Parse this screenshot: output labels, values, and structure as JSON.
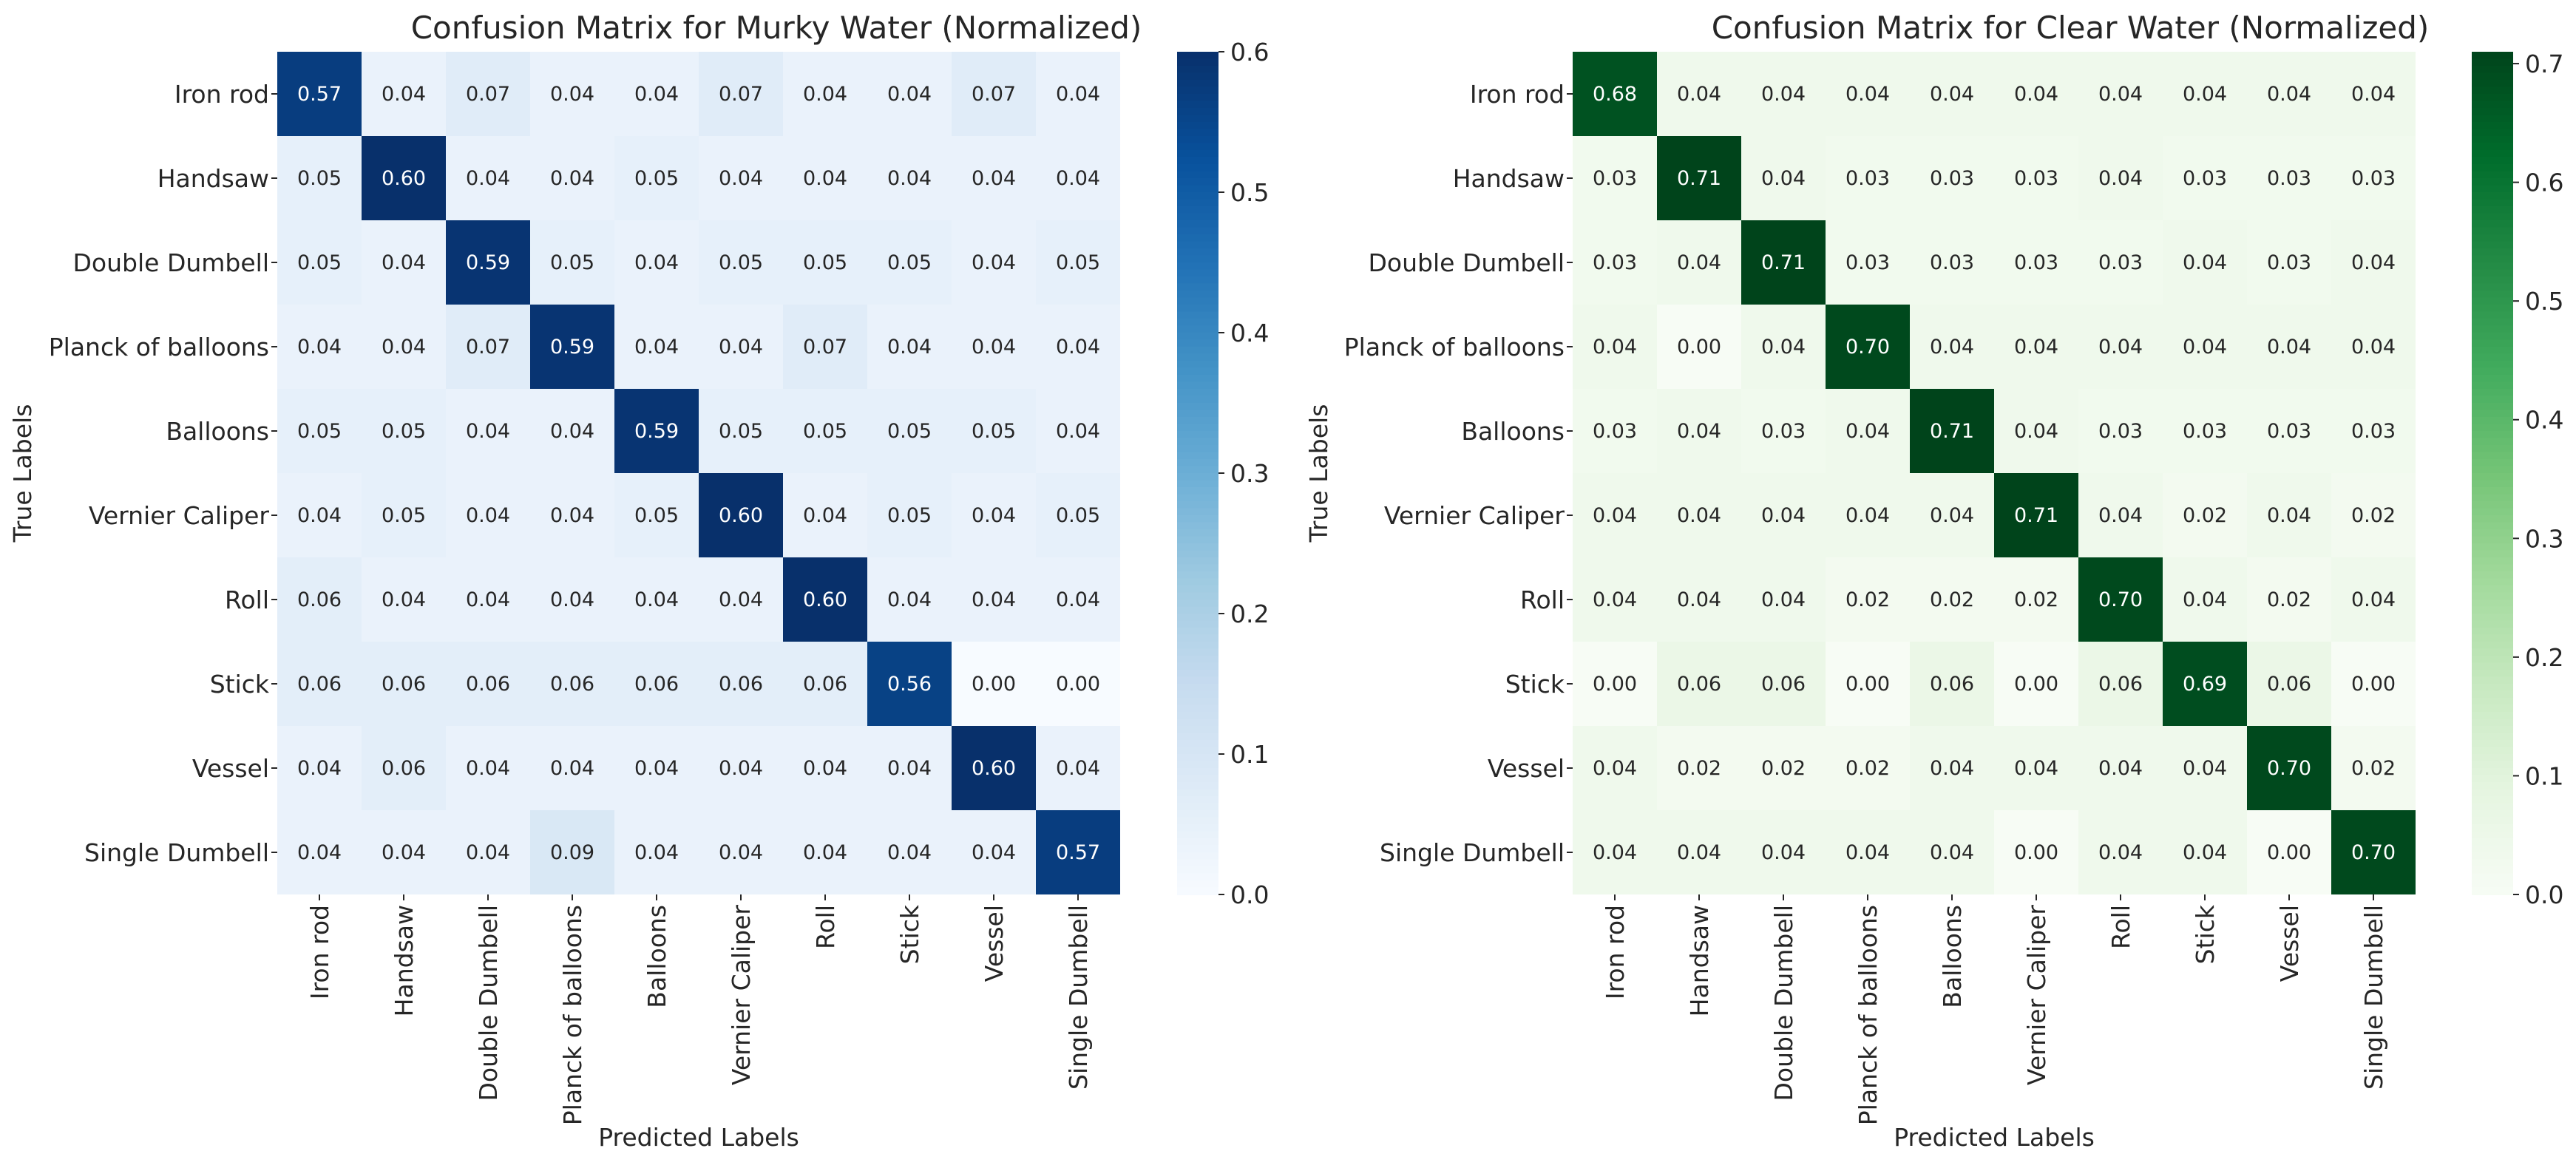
{
  "chart_data": [
    {
      "type": "heatmap",
      "title": "Confusion Matrix for Murky Water (Normalized)",
      "xlabel": "Predicted Labels",
      "ylabel": "True Labels",
      "colormap": "Blues",
      "colorbar": {
        "range": [
          0.0,
          0.6
        ],
        "ticks": [
          "0.0",
          "0.1",
          "0.2",
          "0.3",
          "0.4",
          "0.5",
          "0.6"
        ]
      },
      "categories": [
        "Iron rod",
        "Handsaw",
        "Double Dumbell",
        "Planck of balloons",
        "Balloons",
        "Vernier Caliper",
        "Roll",
        "Stick",
        "Vessel",
        "Single Dumbell"
      ],
      "values": [
        [
          0.57,
          0.04,
          0.07,
          0.04,
          0.04,
          0.07,
          0.04,
          0.04,
          0.07,
          0.04
        ],
        [
          0.05,
          0.6,
          0.04,
          0.04,
          0.05,
          0.04,
          0.04,
          0.04,
          0.04,
          0.04
        ],
        [
          0.05,
          0.04,
          0.59,
          0.05,
          0.04,
          0.05,
          0.05,
          0.05,
          0.04,
          0.05
        ],
        [
          0.04,
          0.04,
          0.07,
          0.59,
          0.04,
          0.04,
          0.07,
          0.04,
          0.04,
          0.04
        ],
        [
          0.05,
          0.05,
          0.04,
          0.04,
          0.59,
          0.05,
          0.05,
          0.05,
          0.05,
          0.04
        ],
        [
          0.04,
          0.05,
          0.04,
          0.04,
          0.05,
          0.6,
          0.04,
          0.05,
          0.04,
          0.05
        ],
        [
          0.06,
          0.04,
          0.04,
          0.04,
          0.04,
          0.04,
          0.6,
          0.04,
          0.04,
          0.04
        ],
        [
          0.06,
          0.06,
          0.06,
          0.06,
          0.06,
          0.06,
          0.06,
          0.56,
          0.0,
          0.0
        ],
        [
          0.04,
          0.06,
          0.04,
          0.04,
          0.04,
          0.04,
          0.04,
          0.04,
          0.6,
          0.04
        ],
        [
          0.04,
          0.04,
          0.04,
          0.09,
          0.04,
          0.04,
          0.04,
          0.04,
          0.04,
          0.57
        ]
      ]
    },
    {
      "type": "heatmap",
      "title": "Confusion Matrix for Clear Water (Normalized)",
      "xlabel": "Predicted Labels",
      "ylabel": "True Labels",
      "colormap": "Greens",
      "colorbar": {
        "range": [
          0.0,
          0.71
        ],
        "ticks": [
          "0.0",
          "0.1",
          "0.2",
          "0.3",
          "0.4",
          "0.5",
          "0.6",
          "0.7"
        ]
      },
      "categories": [
        "Iron rod",
        "Handsaw",
        "Double Dumbell",
        "Planck of balloons",
        "Balloons",
        "Vernier Caliper",
        "Roll",
        "Stick",
        "Vessel",
        "Single Dumbell"
      ],
      "values": [
        [
          0.68,
          0.04,
          0.04,
          0.04,
          0.04,
          0.04,
          0.04,
          0.04,
          0.04,
          0.04
        ],
        [
          0.03,
          0.71,
          0.04,
          0.03,
          0.03,
          0.03,
          0.04,
          0.03,
          0.03,
          0.03
        ],
        [
          0.03,
          0.04,
          0.71,
          0.03,
          0.03,
          0.03,
          0.03,
          0.04,
          0.03,
          0.04
        ],
        [
          0.04,
          0.0,
          0.04,
          0.7,
          0.04,
          0.04,
          0.04,
          0.04,
          0.04,
          0.04
        ],
        [
          0.03,
          0.04,
          0.03,
          0.04,
          0.71,
          0.04,
          0.03,
          0.03,
          0.03,
          0.03
        ],
        [
          0.04,
          0.04,
          0.04,
          0.04,
          0.04,
          0.71,
          0.04,
          0.02,
          0.04,
          0.02
        ],
        [
          0.04,
          0.04,
          0.04,
          0.02,
          0.02,
          0.02,
          0.7,
          0.04,
          0.02,
          0.04
        ],
        [
          0.0,
          0.06,
          0.06,
          0.0,
          0.06,
          0.0,
          0.06,
          0.69,
          0.06,
          0.0
        ],
        [
          0.04,
          0.02,
          0.02,
          0.02,
          0.04,
          0.04,
          0.04,
          0.04,
          0.7,
          0.02
        ],
        [
          0.04,
          0.04,
          0.04,
          0.04,
          0.04,
          0.0,
          0.04,
          0.04,
          0.0,
          0.7
        ]
      ]
    }
  ]
}
